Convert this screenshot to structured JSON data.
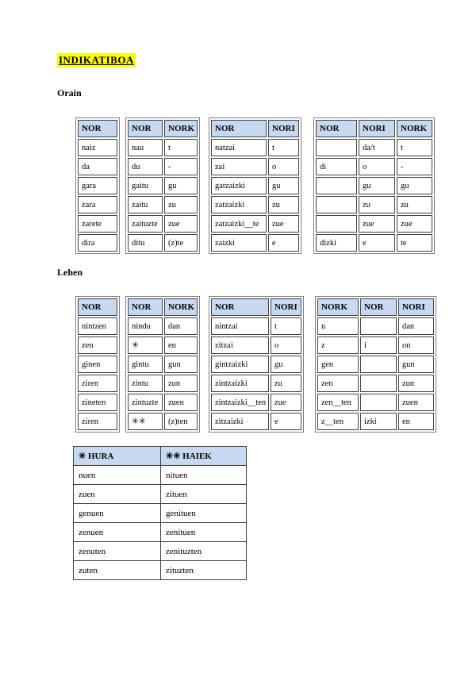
{
  "doc": {
    "title": "INDIKATIBOA",
    "orain_label": "Orain",
    "lehen_label": "Lehen"
  },
  "colors": {
    "header_bg": "#c6d9f1",
    "highlight": "#ffff00",
    "cell_border": "#404040",
    "table_border": "#7f7f7f"
  },
  "orain": {
    "nor": {
      "headers": [
        "NOR"
      ],
      "rows": [
        [
          "naiz"
        ],
        [
          "da"
        ],
        [
          "gara"
        ],
        [
          "zara"
        ],
        [
          "zarete"
        ],
        [
          "dira"
        ]
      ]
    },
    "nor_nork": {
      "headers": [
        "NOR",
        "NORK"
      ],
      "rows": [
        [
          "nau",
          "t"
        ],
        [
          "du",
          "-"
        ],
        [
          "gaitu",
          "gu"
        ],
        [
          "zaitu",
          "zu"
        ],
        [
          "zaituzte",
          "zue"
        ],
        [
          "ditu",
          "(z)te"
        ]
      ]
    },
    "nor_nori": {
      "headers": [
        "NOR",
        "NORI"
      ],
      "rows": [
        [
          "natzai",
          "t"
        ],
        [
          "zai",
          "o"
        ],
        [
          "gatzaizki",
          "gu"
        ],
        [
          "zatzaizki",
          "zu"
        ],
        [
          "zatzaizki__te",
          "zue"
        ],
        [
          "zaizki",
          "e"
        ]
      ]
    },
    "nor_nori_nork": {
      "headers": [
        "NOR",
        "NORI",
        "NORK"
      ],
      "rows": [
        [
          "",
          "da/t",
          "t"
        ],
        [
          "di",
          "o",
          "-"
        ],
        [
          "",
          "gu",
          "gu"
        ],
        [
          "",
          "zu",
          "zu"
        ],
        [
          "",
          "zue",
          "zue"
        ],
        [
          "dizki",
          "e",
          "te"
        ]
      ]
    }
  },
  "lehen": {
    "nor": {
      "headers": [
        "NOR"
      ],
      "rows": [
        [
          "nintzen"
        ],
        [
          "zen"
        ],
        [
          "ginen"
        ],
        [
          "ziren"
        ],
        [
          "zineten"
        ],
        [
          "ziren"
        ]
      ]
    },
    "nor_nork": {
      "headers": [
        "NOR",
        "NORK"
      ],
      "rows": [
        [
          "nindu",
          "dan"
        ],
        [
          "✳",
          "en"
        ],
        [
          "gintu",
          "gun"
        ],
        [
          "zintu",
          "zun"
        ],
        [
          "zintuzte",
          "zuen"
        ],
        [
          "✳✳",
          "(z)ten"
        ]
      ]
    },
    "nor_nori": {
      "headers": [
        "NOR",
        "NORI"
      ],
      "rows": [
        [
          "nintzai",
          "t"
        ],
        [
          "zitzai",
          "o"
        ],
        [
          "gintzaizki",
          "gu"
        ],
        [
          "zintzaizki",
          "zu"
        ],
        [
          "zintzaizki__ten",
          "zue"
        ],
        [
          "zitzaizki",
          "e"
        ]
      ]
    },
    "nork_nor_nori": {
      "headers": [
        "NORK",
        "NOR",
        "NORI"
      ],
      "rows": [
        [
          "n",
          "",
          "dan"
        ],
        [
          "z",
          "i",
          "on"
        ],
        [
          "gen",
          "",
          "gun"
        ],
        [
          "zen",
          "",
          "zun"
        ],
        [
          "zen__ten",
          "",
          "zuen"
        ],
        [
          "z__ten",
          "izki",
          "en"
        ]
      ]
    }
  },
  "legend": {
    "hura_haiek": {
      "headers": [
        "✳ HURA",
        "✳✳ HAIEK"
      ],
      "rows": [
        [
          "nuen",
          "nituen"
        ],
        [
          "zuen",
          "zituen"
        ],
        [
          "genuen",
          "genituen"
        ],
        [
          "zenuen",
          "zenituen"
        ],
        [
          "zenuten",
          "zenituzten"
        ],
        [
          "zuten",
          "zituzten"
        ]
      ]
    }
  }
}
